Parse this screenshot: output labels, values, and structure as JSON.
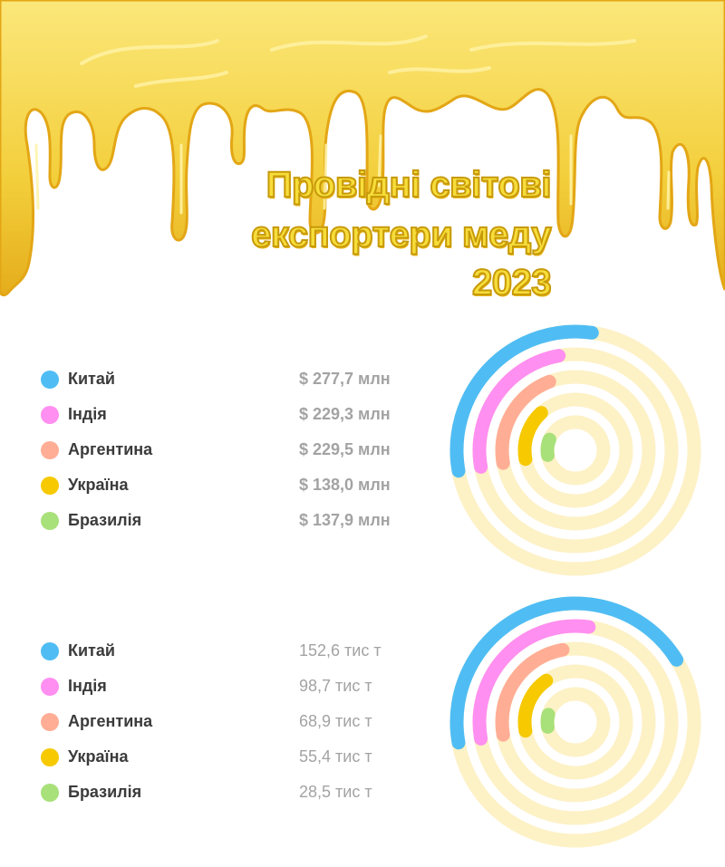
{
  "header": {
    "title_lines": [
      "Провідні світові",
      "експортери меду",
      "2023"
    ]
  },
  "colors": {
    "honey": "#f5d84a",
    "honey_dark": "#e2a512",
    "track": "#fdf1c6",
    "background": "#ffffff"
  },
  "chart_data": [
    {
      "type": "radial_bar",
      "unit": "$ млн",
      "legend_placement": "left",
      "categories": [
        "Китай",
        "Індія",
        "Аргентина",
        "Україна",
        "Бразилія"
      ],
      "values": [
        277.7,
        229.3,
        229.5,
        138.0,
        137.9
      ],
      "value_labels": [
        "$ 277,7 млн",
        "$ 229,3 млн",
        "$ 229,5 млн",
        "$ 138,0 млн",
        "$ 137,9 млн"
      ],
      "arc_fraction": [
        0.3,
        0.25,
        0.22,
        0.16,
        0.09
      ],
      "colors": [
        "#4fbdf4",
        "#ff8ff0",
        "#ffae95",
        "#f6c900",
        "#a8e07a"
      ]
    },
    {
      "type": "radial_bar",
      "unit": "тис т",
      "legend_placement": "left",
      "categories": [
        "Китай",
        "Індія",
        "Аргентина",
        "Україна",
        "Бразилія"
      ],
      "values": [
        152.6,
        98.7,
        68.9,
        55.4,
        28.5
      ],
      "value_labels": [
        "152,6 тис т",
        "98,7 тис т",
        "68,9 тис т",
        "55,4 тис т",
        "28,5 тис т"
      ],
      "arc_fraction": [
        0.44,
        0.3,
        0.25,
        0.18,
        0.07
      ],
      "colors": [
        "#4fbdf4",
        "#ff8ff0",
        "#ffae95",
        "#f6c900",
        "#a8e07a"
      ]
    }
  ]
}
